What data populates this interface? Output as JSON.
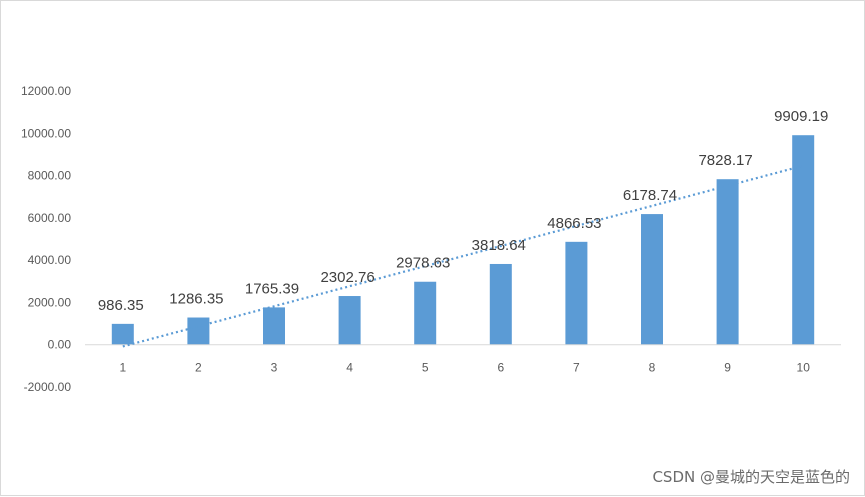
{
  "chart_data": {
    "type": "bar",
    "categories": [
      "1",
      "2",
      "3",
      "4",
      "5",
      "6",
      "7",
      "8",
      "9",
      "10"
    ],
    "values": [
      986.35,
      1286.35,
      1765.39,
      2302.76,
      2978.63,
      3818.64,
      4866.53,
      6178.74,
      7828.17,
      9909.19
    ],
    "data_labels": [
      "986.35",
      "1286.35",
      "1765.39",
      "2302.76",
      "2978.63",
      "3818.64",
      "4866.53",
      "6178.74",
      "7828.17",
      "9909.19"
    ],
    "ylim": [
      -2000,
      12000
    ],
    "yticks": [
      -2000,
      0,
      2000,
      4000,
      6000,
      8000,
      10000,
      12000
    ],
    "ytick_labels": [
      "-2000.00",
      "0.00",
      "2000.00",
      "4000.00",
      "6000.00",
      "8000.00",
      "10000.00",
      "12000.00"
    ],
    "trendline": {
      "type": "linear",
      "style": "dotted"
    },
    "grid": false,
    "bar_color": "#5b9bd5",
    "trend_color": "#5b9bd5"
  },
  "watermark": "CSDN @曼城的天空是蓝色的"
}
